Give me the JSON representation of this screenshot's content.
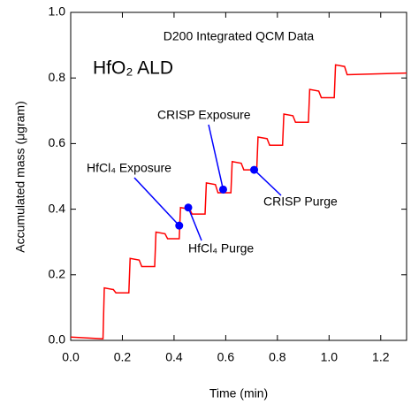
{
  "chart_data": {
    "type": "line",
    "title": "D200 Integrated QCM Data",
    "subtitle": "HfO₂ ALD",
    "x_label": "Time (min)",
    "y_label": "Accumulated mass (μgram)",
    "xlim": [
      0,
      1.3
    ],
    "ylim": [
      0,
      1.0
    ],
    "xticks": [
      {
        "value": 0,
        "label": "0.0"
      },
      {
        "value": 0.2,
        "label": "0.2"
      },
      {
        "value": 0.4,
        "label": "0.4"
      },
      {
        "value": 0.6,
        "label": "0.6"
      },
      {
        "value": 0.8,
        "label": "0.8"
      },
      {
        "value": 1.0,
        "label": "1.0"
      },
      {
        "value": 1.2,
        "label": "1.2"
      }
    ],
    "yticks": [
      {
        "value": 0,
        "label": "0.0"
      },
      {
        "value": 0.2,
        "label": "0.2"
      },
      {
        "value": 0.4,
        "label": "0.4"
      },
      {
        "value": 0.6,
        "label": "0.6"
      },
      {
        "value": 0.8,
        "label": "0.8"
      },
      {
        "value": 1.0,
        "label": "1.0"
      }
    ],
    "x": [
      0,
      0.12,
      0.125,
      0.13,
      0.165,
      0.175,
      0.225,
      0.23,
      0.265,
      0.275,
      0.325,
      0.33,
      0.365,
      0.375,
      0.42,
      0.425,
      0.46,
      0.47,
      0.52,
      0.525,
      0.56,
      0.57,
      0.62,
      0.625,
      0.66,
      0.67,
      0.72,
      0.725,
      0.76,
      0.77,
      0.82,
      0.825,
      0.86,
      0.87,
      0.92,
      0.925,
      0.96,
      0.97,
      1.02,
      1.025,
      1.06,
      1.07,
      1.3
    ],
    "series": [
      {
        "color": "#ff0000",
        "values": [
          0.01,
          0.005,
          0.005,
          0.16,
          0.155,
          0.145,
          0.145,
          0.25,
          0.245,
          0.225,
          0.225,
          0.33,
          0.325,
          0.31,
          0.31,
          0.405,
          0.4,
          0.385,
          0.385,
          0.48,
          0.475,
          0.45,
          0.45,
          0.545,
          0.54,
          0.52,
          0.52,
          0.62,
          0.615,
          0.595,
          0.595,
          0.69,
          0.685,
          0.665,
          0.665,
          0.765,
          0.76,
          0.74,
          0.74,
          0.84,
          0.835,
          0.81,
          0.815
        ]
      }
    ],
    "annotations": [
      {
        "text": "HfCl₄ Exposure",
        "x": 0.42,
        "y": 0.35
      },
      {
        "text": "HfCl₄ Purge",
        "x": 0.455,
        "y": 0.405
      },
      {
        "text": "CRISP Exposure",
        "x": 0.59,
        "y": 0.46
      },
      {
        "text": "CRISP Purge",
        "x": 0.71,
        "y": 0.52
      }
    ],
    "marker_color": "#0000ff"
  }
}
